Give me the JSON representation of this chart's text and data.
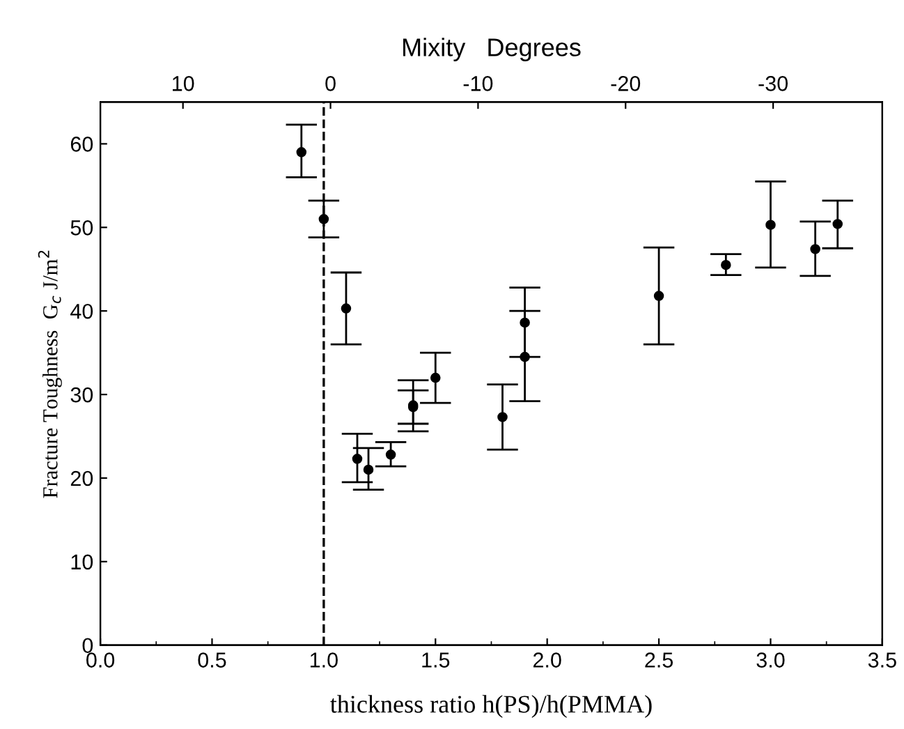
{
  "chart_data": {
    "type": "scatter",
    "xlabel": "thickness ratio h(PS)/h(PMMA)",
    "ylabel": "Fracture Toughness  G$_{c}$ J/m$^{2}$",
    "x2label": "Mixity   Degrees",
    "series": [
      {
        "color": "#000000",
        "x": [
          0.9,
          1.0,
          1.1,
          1.15,
          1.2,
          1.3,
          1.4,
          1.4,
          1.5,
          1.8,
          1.9,
          1.9,
          2.5,
          2.8,
          3.0,
          3.2,
          3.3
        ],
        "values": [
          59,
          51,
          40.3,
          22.3,
          21,
          22.8,
          28.5,
          28.7,
          32,
          27.3,
          38.6,
          34.5,
          41.8,
          45.5,
          50.3,
          47.4,
          50.4
        ],
        "errors": [
          [
            56,
            62.3
          ],
          [
            48.8,
            53.2
          ],
          [
            36,
            44.6
          ],
          [
            19.5,
            25.3
          ],
          [
            18.6,
            23.6
          ],
          [
            21.4,
            24.3
          ],
          [
            26.5,
            30.5
          ],
          [
            25.6,
            31.7
          ],
          [
            29,
            35
          ],
          [
            23.4,
            31.2
          ],
          [
            34.5,
            42.8
          ],
          [
            29.2,
            40
          ],
          [
            36,
            47.6
          ],
          [
            44.3,
            46.8
          ],
          [
            45.2,
            55.5
          ],
          [
            44.2,
            50.7
          ],
          [
            47.5,
            53.2
          ]
        ]
      }
    ],
    "marker": "circle",
    "xlim": [
      0,
      3.5
    ],
    "xticks": [
      {
        "value": 0,
        "label": "0.0"
      },
      0.5,
      {
        "value": 1,
        "label": "1.0"
      },
      1.5,
      {
        "value": 2,
        "label": "2.0"
      },
      2.5,
      {
        "value": 3,
        "label": "3.0"
      },
      3.5
    ],
    "ylim": [
      0,
      65
    ],
    "yticks": [
      0,
      10,
      20,
      30,
      40,
      50,
      60
    ],
    "x2lim": [
      15.6,
      -37.4
    ],
    "x2ticks": [
      10,
      0,
      -10,
      -20,
      -30
    ],
    "ref_lines": [
      {
        "axis": "x",
        "value": 1.0,
        "label": null,
        "line_style": "dashed",
        "color": "#000000"
      }
    ]
  }
}
